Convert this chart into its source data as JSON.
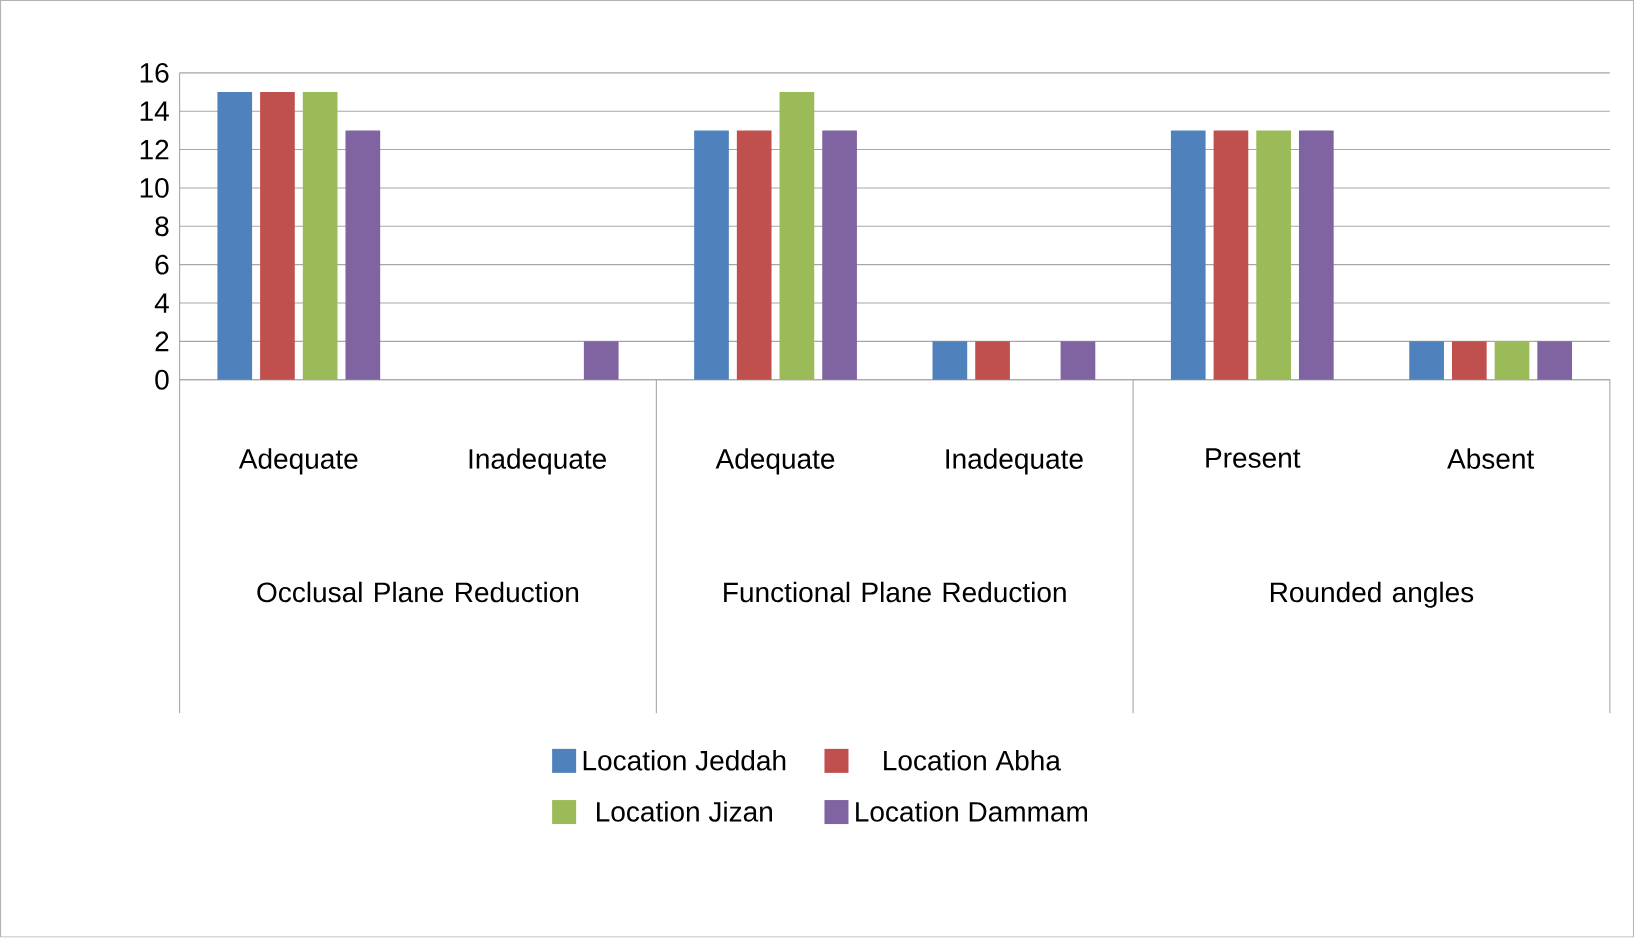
{
  "chart_data": {
    "type": "bar",
    "categories": [
      "Adequate",
      "Inadequate",
      "Adequate",
      "Inadequate",
      "Present",
      "Absent"
    ],
    "series": [
      {
        "name": "Location Jeddah",
        "color": "#4f81bd",
        "values": [
          15,
          0,
          13,
          2,
          13,
          2
        ]
      },
      {
        "name": "Location Abha",
        "color": "#c0504d",
        "values": [
          15,
          0,
          13,
          2,
          13,
          2
        ]
      },
      {
        "name": "Location Jizan",
        "color": "#9bbb59",
        "values": [
          15,
          0,
          15,
          0,
          13,
          2
        ]
      },
      {
        "name": "Location Dammam",
        "color": "#8064a2",
        "values": [
          13,
          2,
          13,
          2,
          13,
          2
        ]
      }
    ],
    "annotations": [
      "Occlusal Plane Reduction",
      "Functional Plane Reduction",
      "Rounded angles"
    ],
    "ylim": [
      0,
      16
    ],
    "yticks": [
      0,
      2,
      4,
      6,
      8,
      10,
      12,
      14,
      16
    ],
    "grid": "y",
    "legend": "bottom"
  }
}
